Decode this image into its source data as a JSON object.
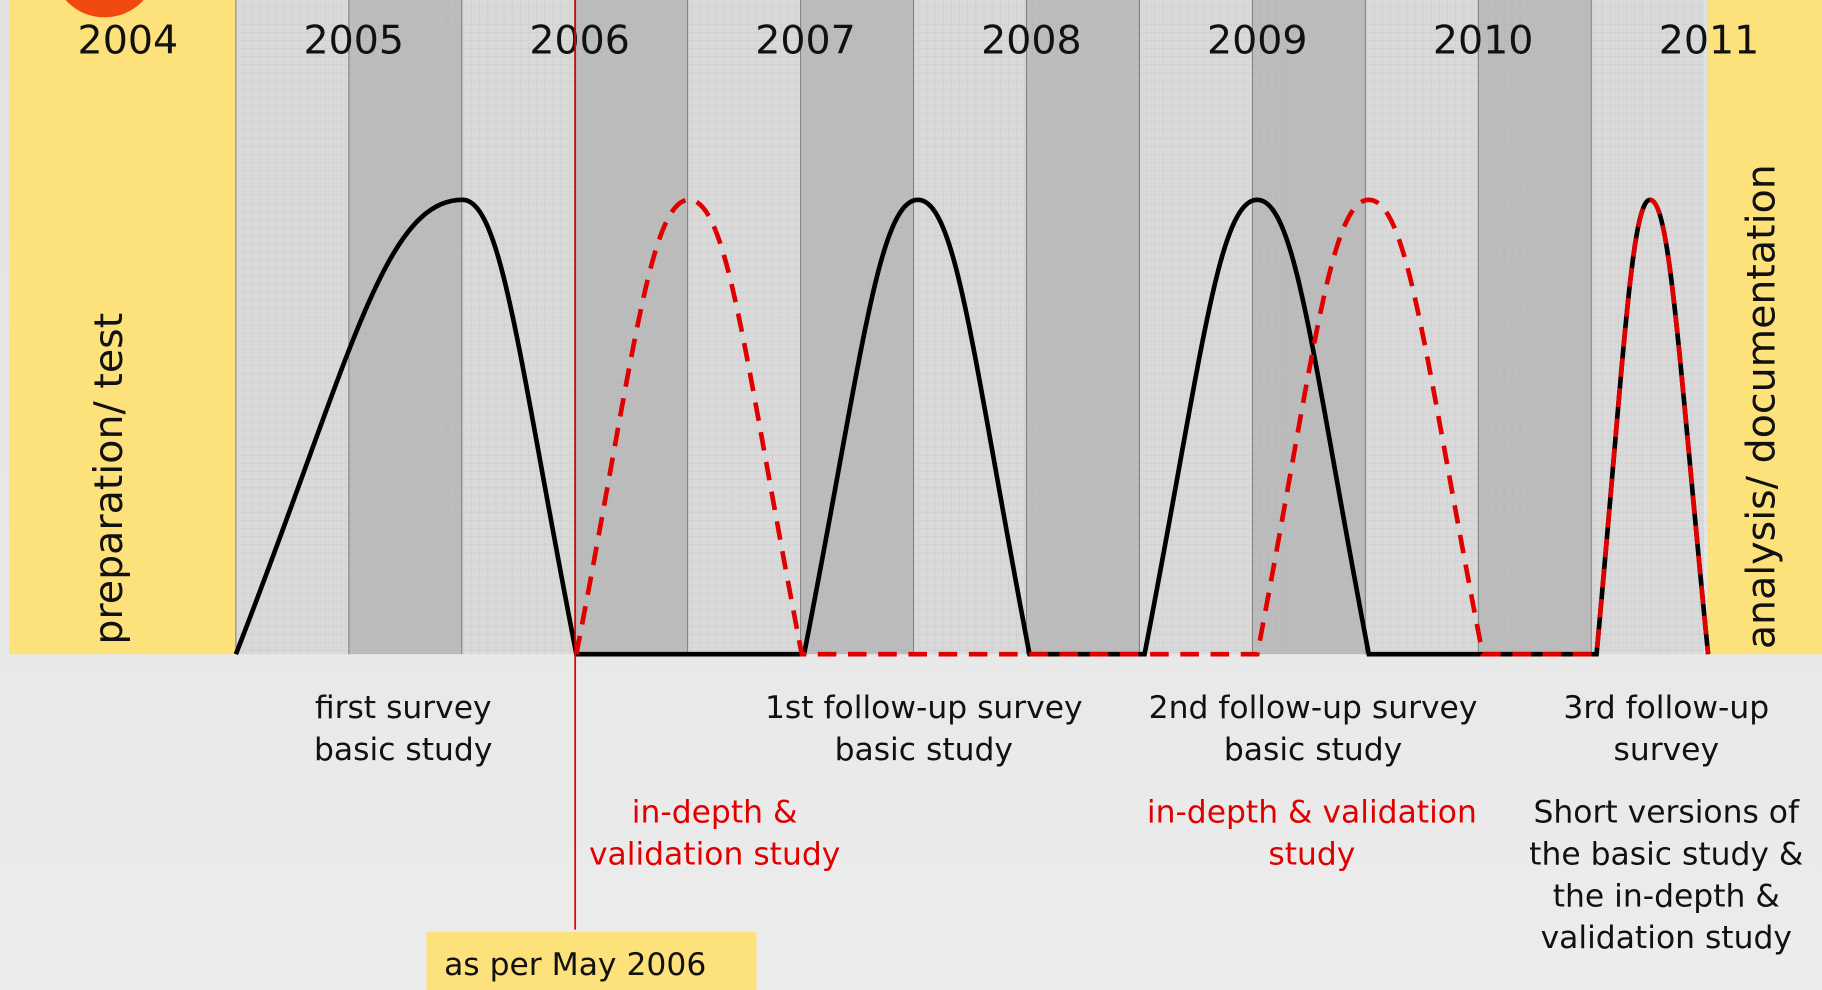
{
  "years": [
    "2004",
    "2005",
    "2006",
    "2007",
    "2008",
    "2009",
    "2010",
    "2011"
  ],
  "left_label": "preparation/ test",
  "right_label": "analysis/ documentation",
  "basic_labels": [
    {
      "lines": [
        "first survey",
        "basic study"
      ]
    },
    {
      "lines": [
        "1st follow-up survey",
        "basic study"
      ]
    },
    {
      "lines": [
        "2nd follow-up survey",
        "basic study"
      ]
    },
    {
      "lines": [
        "3rd follow-up",
        "survey"
      ]
    }
  ],
  "indepth_labels": [
    {
      "lines": [
        "in-depth &",
        "validation study"
      ]
    },
    {
      "lines": [
        "in-depth & validation",
        "study"
      ]
    }
  ],
  "short_versions": {
    "lines": [
      "Short versions of",
      "the basic study &",
      "the in-depth &",
      "validation study"
    ]
  },
  "note": "as per May 2006"
}
